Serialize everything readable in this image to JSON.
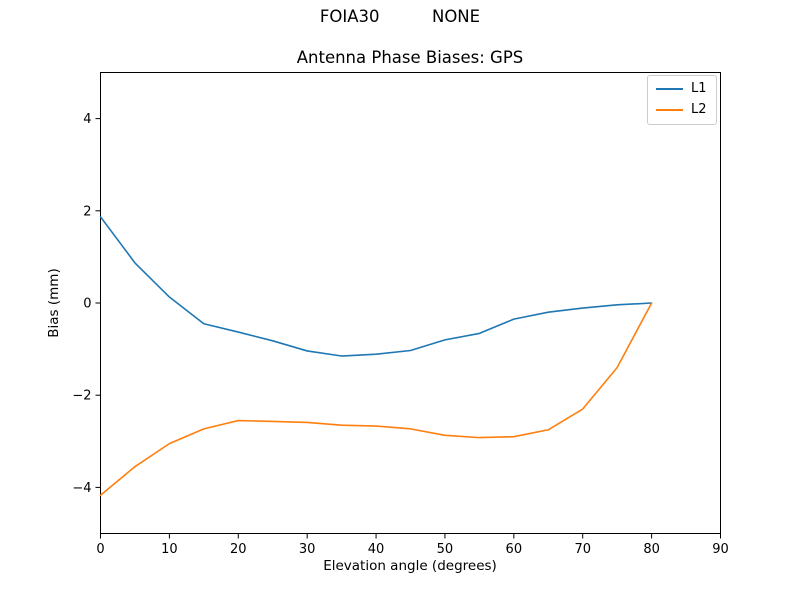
{
  "header": {
    "suptitle": "FOIA30          NONE"
  },
  "chart_data": {
    "type": "line",
    "title": "Antenna Phase Biases: GPS",
    "xlabel": "Elevation angle (degrees)",
    "ylabel": "Bias (mm)",
    "xlim": [
      0,
      90
    ],
    "ylim": [
      -5,
      5
    ],
    "x_ticks": [
      0,
      10,
      20,
      30,
      40,
      50,
      60,
      70,
      80,
      90
    ],
    "x_tick_labels": [
      "0",
      "10",
      "20",
      "30",
      "40",
      "50",
      "60",
      "70",
      "80",
      "90"
    ],
    "y_ticks": [
      -4,
      -2,
      0,
      2,
      4
    ],
    "y_tick_labels": [
      "−4",
      "−2",
      "0",
      "2",
      "4"
    ],
    "grid": false,
    "legend_position": "upper right",
    "x": [
      0,
      5,
      10,
      15,
      20,
      25,
      30,
      35,
      40,
      45,
      50,
      55,
      60,
      65,
      70,
      75,
      80
    ],
    "series": [
      {
        "name": "L1",
        "color": "#1f77b4",
        "values": [
          1.87,
          0.87,
          0.13,
          -0.45,
          -0.63,
          -0.82,
          -1.04,
          -1.15,
          -1.11,
          -1.03,
          -0.8,
          -0.66,
          -0.35,
          -0.2,
          -0.11,
          -0.04,
          0.0
        ]
      },
      {
        "name": "L2",
        "color": "#ff7f0e",
        "values": [
          -4.17,
          -3.55,
          -3.05,
          -2.73,
          -2.55,
          -2.57,
          -2.59,
          -2.65,
          -2.67,
          -2.73,
          -2.87,
          -2.92,
          -2.9,
          -2.75,
          -2.3,
          -1.4,
          0.0
        ]
      }
    ]
  }
}
